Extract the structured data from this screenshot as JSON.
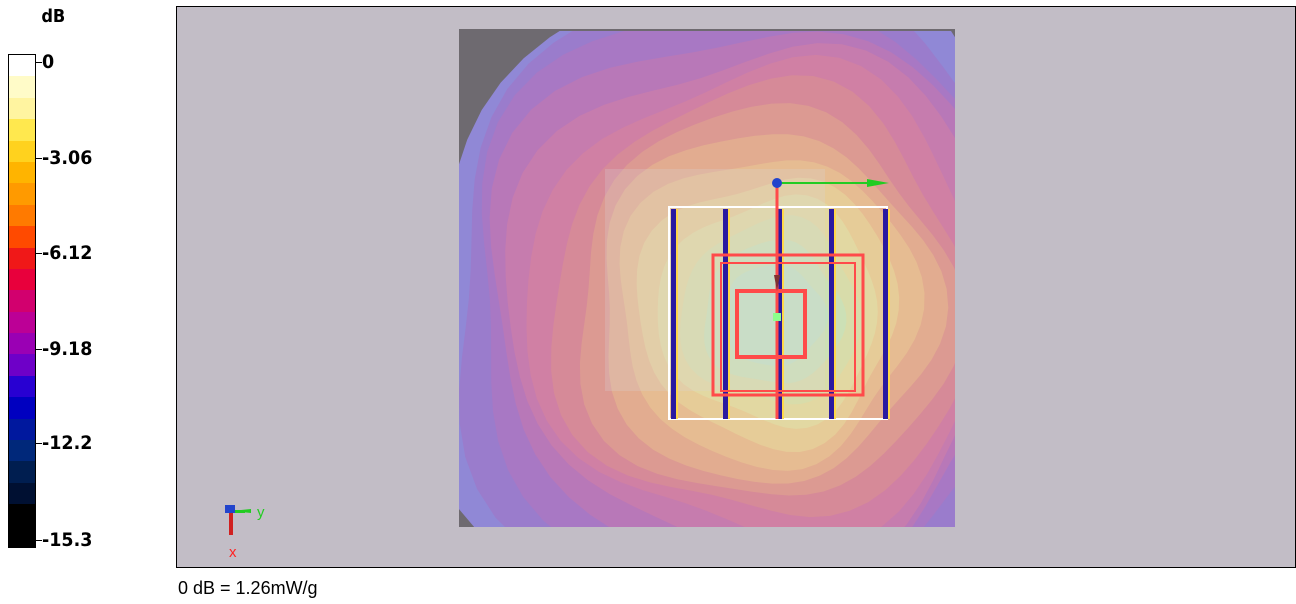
{
  "legend": {
    "unit": "dB",
    "swatch_colors": [
      "#ffffff",
      "#fffbc8",
      "#fff4a0",
      "#ffe84e",
      "#ffd21e",
      "#ffb400",
      "#ff9a00",
      "#ff7a00",
      "#ff4a00",
      "#f01818",
      "#e8003c",
      "#d2006e",
      "#bc0096",
      "#9a00b4",
      "#6e00c8",
      "#2800d2",
      "#0000c0",
      "#00189e",
      "#00287a",
      "#001e50",
      "#001032",
      "#000000",
      "#000000"
    ],
    "ticks": [
      {
        "label": "0",
        "level": 0
      },
      {
        "label": "-3.06",
        "level": 3.06
      },
      {
        "label": "-6.12",
        "level": 6.12
      },
      {
        "label": "-9.18",
        "level": 9.18
      },
      {
        "label": "-12.2",
        "level": 12.2
      },
      {
        "label": "-15.3",
        "level": 15.3
      }
    ],
    "min_level": -15.3,
    "max_level": 0
  },
  "viewport": {
    "background": "#c2bdc6",
    "contour_colors": [
      "#9088d6",
      "#9a7ccc",
      "#a878c4",
      "#b878b8",
      "#c67cae",
      "#d080a4",
      "#d68a98",
      "#dc9a92",
      "#e2ac90",
      "#e6bc92",
      "#e6cc98",
      "#e2d8a2",
      "#d8dcaa",
      "#cce0b6",
      "#c4e0c2"
    ],
    "frame_color": "#ff4a4a",
    "axis_y_color": "#22cc22",
    "axis_x_color": "#ff2222",
    "axis_z_color": "#2244cc"
  },
  "axes_gizmo": {
    "y_label": "y",
    "x_label": "x"
  },
  "footer": {
    "note": "0 dB = 1.26mW/g"
  }
}
